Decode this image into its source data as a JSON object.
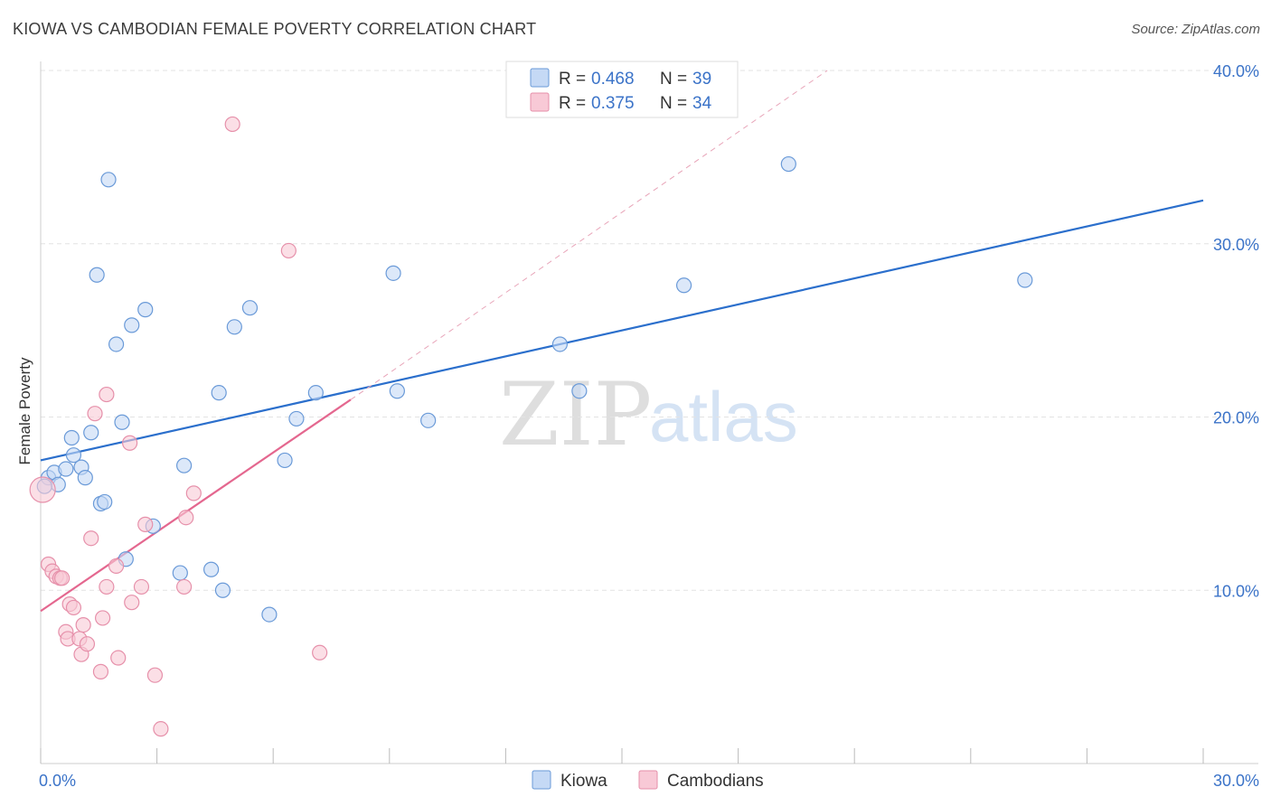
{
  "header": {
    "title": "KIOWA VS CAMBODIAN FEMALE POVERTY CORRELATION CHART",
    "source": "Source: ZipAtlas.com"
  },
  "watermark": {
    "zip": "ZIP",
    "atlas": "atlas"
  },
  "colors": {
    "kiowa_fill": "#c5d9f5",
    "kiowa_stroke": "#6a9ad8",
    "kiowa_line": "#2b6fcc",
    "cambodian_fill": "#f8c9d6",
    "cambodian_stroke": "#e690aa",
    "cambodian_line": "#e4678f",
    "axis_label": "#3b73c8"
  },
  "legend": {
    "rows": [
      {
        "series": "kiowa",
        "r_label": "R =",
        "r_value": "0.468",
        "n_label": "N =",
        "n_value": "39"
      },
      {
        "series": "cambodian",
        "r_label": "R =",
        "r_value": "0.375",
        "n_label": "N =",
        "n_value": "34"
      }
    ]
  },
  "bottom_legend": [
    {
      "series": "kiowa",
      "label": "Kiowa"
    },
    {
      "series": "cambodian",
      "label": "Cambodians"
    }
  ],
  "chart_data": {
    "type": "scatter",
    "title": "KIOWA VS CAMBODIAN FEMALE POVERTY CORRELATION CHART",
    "xlabel": "",
    "ylabel": "Female Poverty",
    "xlim": [
      0,
      30
    ],
    "ylim": [
      0,
      40
    ],
    "x_ticks": [
      0,
      3,
      6,
      9,
      12,
      15,
      18,
      21,
      24,
      27,
      30
    ],
    "x_tick_labels": {
      "0": "0.0%",
      "30": "30.0%"
    },
    "y_ticks": [
      10,
      20,
      30,
      40
    ],
    "y_tick_labels": [
      "10.0%",
      "20.0%",
      "30.0%",
      "40.0%"
    ],
    "grid": true,
    "series": [
      {
        "name": "Kiowa",
        "key": "kiowa",
        "r": 0.468,
        "n": 39,
        "trend": {
          "x0": 0,
          "y0": 17.5,
          "x1": 30,
          "y1": 32.5
        },
        "points": [
          [
            0.2,
            16.5
          ],
          [
            0.35,
            16.8
          ],
          [
            0.45,
            16.1
          ],
          [
            0.65,
            17.0
          ],
          [
            0.8,
            18.8
          ],
          [
            0.85,
            17.8
          ],
          [
            1.05,
            17.1
          ],
          [
            1.15,
            16.5
          ],
          [
            1.3,
            19.1
          ],
          [
            1.55,
            15.0
          ],
          [
            1.65,
            15.1
          ],
          [
            1.75,
            33.7
          ],
          [
            1.45,
            28.2
          ],
          [
            1.95,
            24.2
          ],
          [
            2.1,
            19.7
          ],
          [
            2.2,
            11.8
          ],
          [
            2.35,
            25.3
          ],
          [
            2.7,
            26.2
          ],
          [
            2.9,
            13.7
          ],
          [
            3.6,
            11.0
          ],
          [
            3.7,
            17.2
          ],
          [
            4.4,
            11.2
          ],
          [
            4.6,
            21.4
          ],
          [
            4.7,
            10.0
          ],
          [
            5.0,
            25.2
          ],
          [
            5.4,
            26.3
          ],
          [
            5.9,
            8.6
          ],
          [
            6.3,
            17.5
          ],
          [
            6.6,
            19.9
          ],
          [
            7.1,
            21.4
          ],
          [
            9.1,
            28.3
          ],
          [
            9.2,
            21.5
          ],
          [
            10.0,
            19.8
          ],
          [
            13.4,
            24.2
          ],
          [
            13.9,
            21.5
          ],
          [
            16.6,
            27.6
          ],
          [
            19.3,
            34.6
          ],
          [
            25.4,
            27.9
          ],
          [
            0.1,
            16.0
          ]
        ]
      },
      {
        "name": "Cambodians",
        "key": "cambodian",
        "r": 0.375,
        "n": 34,
        "trend": {
          "x0": 0,
          "y0": 8.8,
          "x1": 8.0,
          "y1": 21.0
        },
        "trend_extension": {
          "x0": 8.0,
          "y0": 21.0,
          "x1": 20.3,
          "y1": 40.0
        },
        "points": [
          [
            0.05,
            15.8
          ],
          [
            0.2,
            11.5
          ],
          [
            0.3,
            11.1
          ],
          [
            0.4,
            10.8
          ],
          [
            0.5,
            10.7
          ],
          [
            0.55,
            10.7
          ],
          [
            0.65,
            7.6
          ],
          [
            0.7,
            7.2
          ],
          [
            0.75,
            9.2
          ],
          [
            0.85,
            9.0
          ],
          [
            1.0,
            7.2
          ],
          [
            1.05,
            6.3
          ],
          [
            1.1,
            8.0
          ],
          [
            1.2,
            6.9
          ],
          [
            1.3,
            13.0
          ],
          [
            1.4,
            20.2
          ],
          [
            1.55,
            5.3
          ],
          [
            1.6,
            8.4
          ],
          [
            1.7,
            10.2
          ],
          [
            1.7,
            21.3
          ],
          [
            1.95,
            11.4
          ],
          [
            2.0,
            6.1
          ],
          [
            2.3,
            18.5
          ],
          [
            2.35,
            9.3
          ],
          [
            2.6,
            10.2
          ],
          [
            2.7,
            13.8
          ],
          [
            2.95,
            5.1
          ],
          [
            3.1,
            2.0
          ],
          [
            3.7,
            10.2
          ],
          [
            3.75,
            14.2
          ],
          [
            3.95,
            15.6
          ],
          [
            4.95,
            36.9
          ],
          [
            6.4,
            29.6
          ],
          [
            7.2,
            6.4
          ]
        ]
      }
    ]
  }
}
